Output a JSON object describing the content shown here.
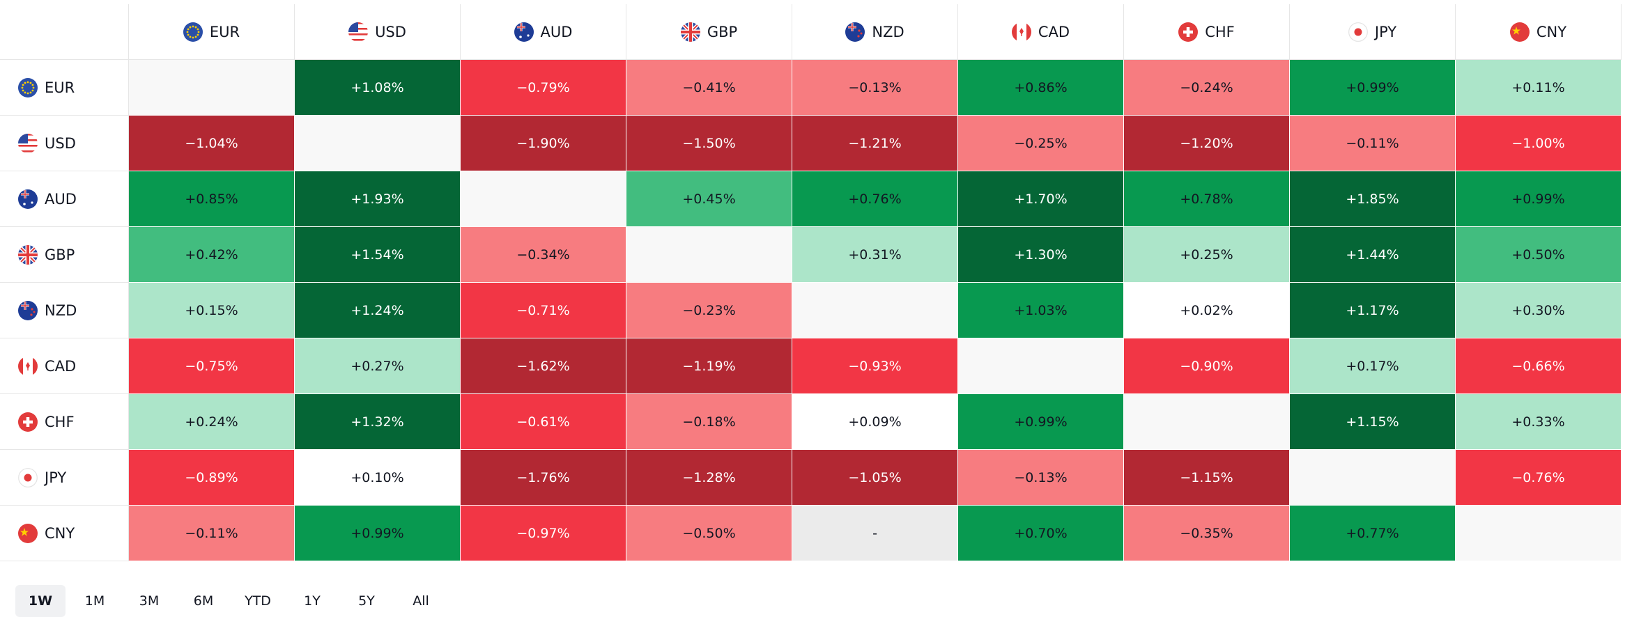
{
  "header": [
    "EUR",
    "USD",
    "AUD",
    "GBP",
    "NZD",
    "CAD",
    "CHF",
    "JPY",
    "CNY"
  ],
  "rows": [
    {
      "label": "EUR",
      "cells": [
        null,
        "+1.08%",
        "−0.79%",
        "−0.41%",
        "−0.13%",
        "+0.86%",
        "−0.24%",
        "+0.99%",
        "+0.11%"
      ]
    },
    {
      "label": "USD",
      "cells": [
        "−1.04%",
        null,
        "−1.90%",
        "−1.50%",
        "−1.21%",
        "−0.25%",
        "−1.20%",
        "−0.11%",
        "−1.00%"
      ]
    },
    {
      "label": "AUD",
      "cells": [
        "+0.85%",
        "+1.93%",
        null,
        "+0.45%",
        "+0.76%",
        "+1.70%",
        "+0.78%",
        "+1.85%",
        "+0.99%"
      ]
    },
    {
      "label": "GBP",
      "cells": [
        "+0.42%",
        "+1.54%",
        "−0.34%",
        null,
        "+0.31%",
        "+1.30%",
        "+0.25%",
        "+1.44%",
        "+0.50%"
      ]
    },
    {
      "label": "NZD",
      "cells": [
        "+0.15%",
        "+1.24%",
        "−0.71%",
        "−0.23%",
        null,
        "+1.03%",
        "+0.02%",
        "+1.17%",
        "+0.30%"
      ]
    },
    {
      "label": "CAD",
      "cells": [
        "−0.75%",
        "+0.27%",
        "−1.62%",
        "−1.19%",
        "−0.93%",
        null,
        "−0.90%",
        "+0.17%",
        "−0.66%"
      ]
    },
    {
      "label": "CHF",
      "cells": [
        "+0.24%",
        "+1.32%",
        "−0.61%",
        "−0.18%",
        "+0.09%",
        "+0.99%",
        null,
        "+1.15%",
        "+0.33%"
      ]
    },
    {
      "label": "JPY",
      "cells": [
        "−0.89%",
        "+0.10%",
        "−1.76%",
        "−1.28%",
        "−1.05%",
        "−0.13%",
        "−1.15%",
        null,
        "−0.76%"
      ]
    },
    {
      "label": "CNY",
      "cells": [
        "−0.11%",
        "+0.99%",
        "−0.97%",
        "−0.50%",
        "-",
        "+0.70%",
        "−0.35%",
        "+0.77%",
        null
      ]
    }
  ],
  "tabs": [
    "1W",
    "1M",
    "3M",
    "6M",
    "YTD",
    "1Y",
    "5Y",
    "All"
  ]
}
